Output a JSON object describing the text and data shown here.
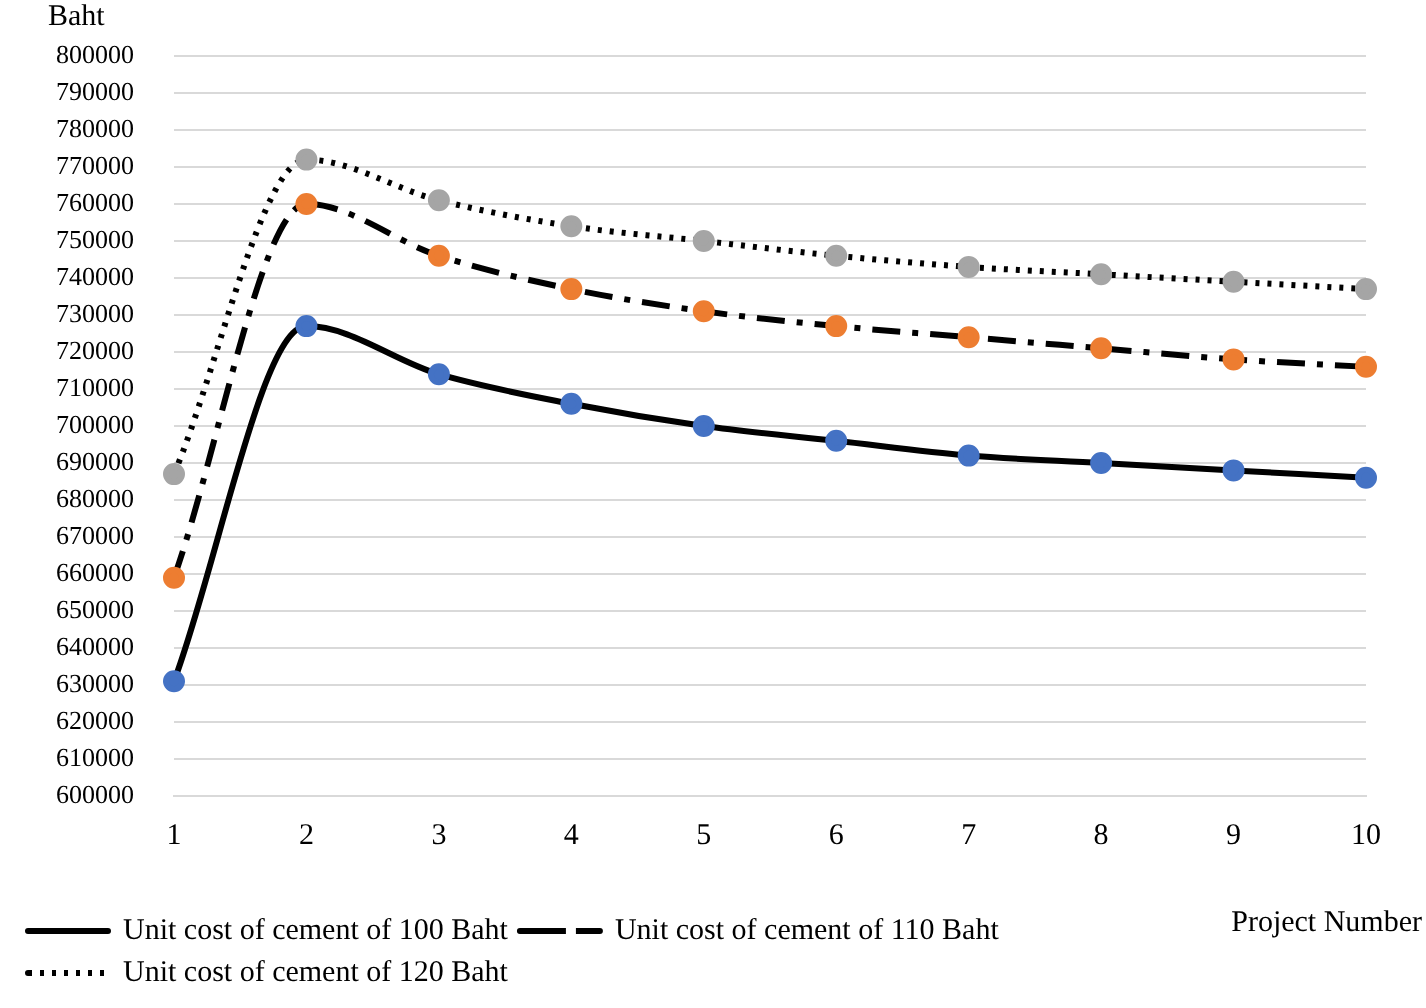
{
  "chart_data": {
    "type": "line",
    "xlabel": "Project Number",
    "ylabel": "Baht",
    "categories": [
      "1",
      "2",
      "3",
      "4",
      "5",
      "6",
      "7",
      "8",
      "9",
      "10"
    ],
    "series": [
      {
        "name": "Unit cost of cement of 100 Baht",
        "color": "#4472c4",
        "line_style": "solid",
        "values": [
          631000,
          727000,
          714000,
          706000,
          700000,
          696000,
          692000,
          690000,
          688000,
          686000
        ]
      },
      {
        "name": "Unit cost of cement of 110 Baht",
        "color": "#ed7d31",
        "line_style": "dashed",
        "values": [
          659000,
          760000,
          746000,
          737000,
          731000,
          727000,
          724000,
          721000,
          718000,
          716000
        ]
      },
      {
        "name": "Unit cost of cement of 120 Baht",
        "color": "#a5a5a5",
        "line_style": "dotted",
        "values": [
          687000,
          772000,
          761000,
          754000,
          750000,
          746000,
          743000,
          741000,
          739000,
          737000
        ]
      }
    ],
    "ylim": [
      600000,
      800000
    ],
    "yticks": [
      600000,
      610000,
      620000,
      630000,
      640000,
      650000,
      660000,
      670000,
      680000,
      690000,
      700000,
      710000,
      720000,
      730000,
      740000,
      750000,
      760000,
      770000,
      780000,
      790000,
      800000
    ],
    "grid": "y",
    "legend": "bottom",
    "marker": "circle"
  }
}
